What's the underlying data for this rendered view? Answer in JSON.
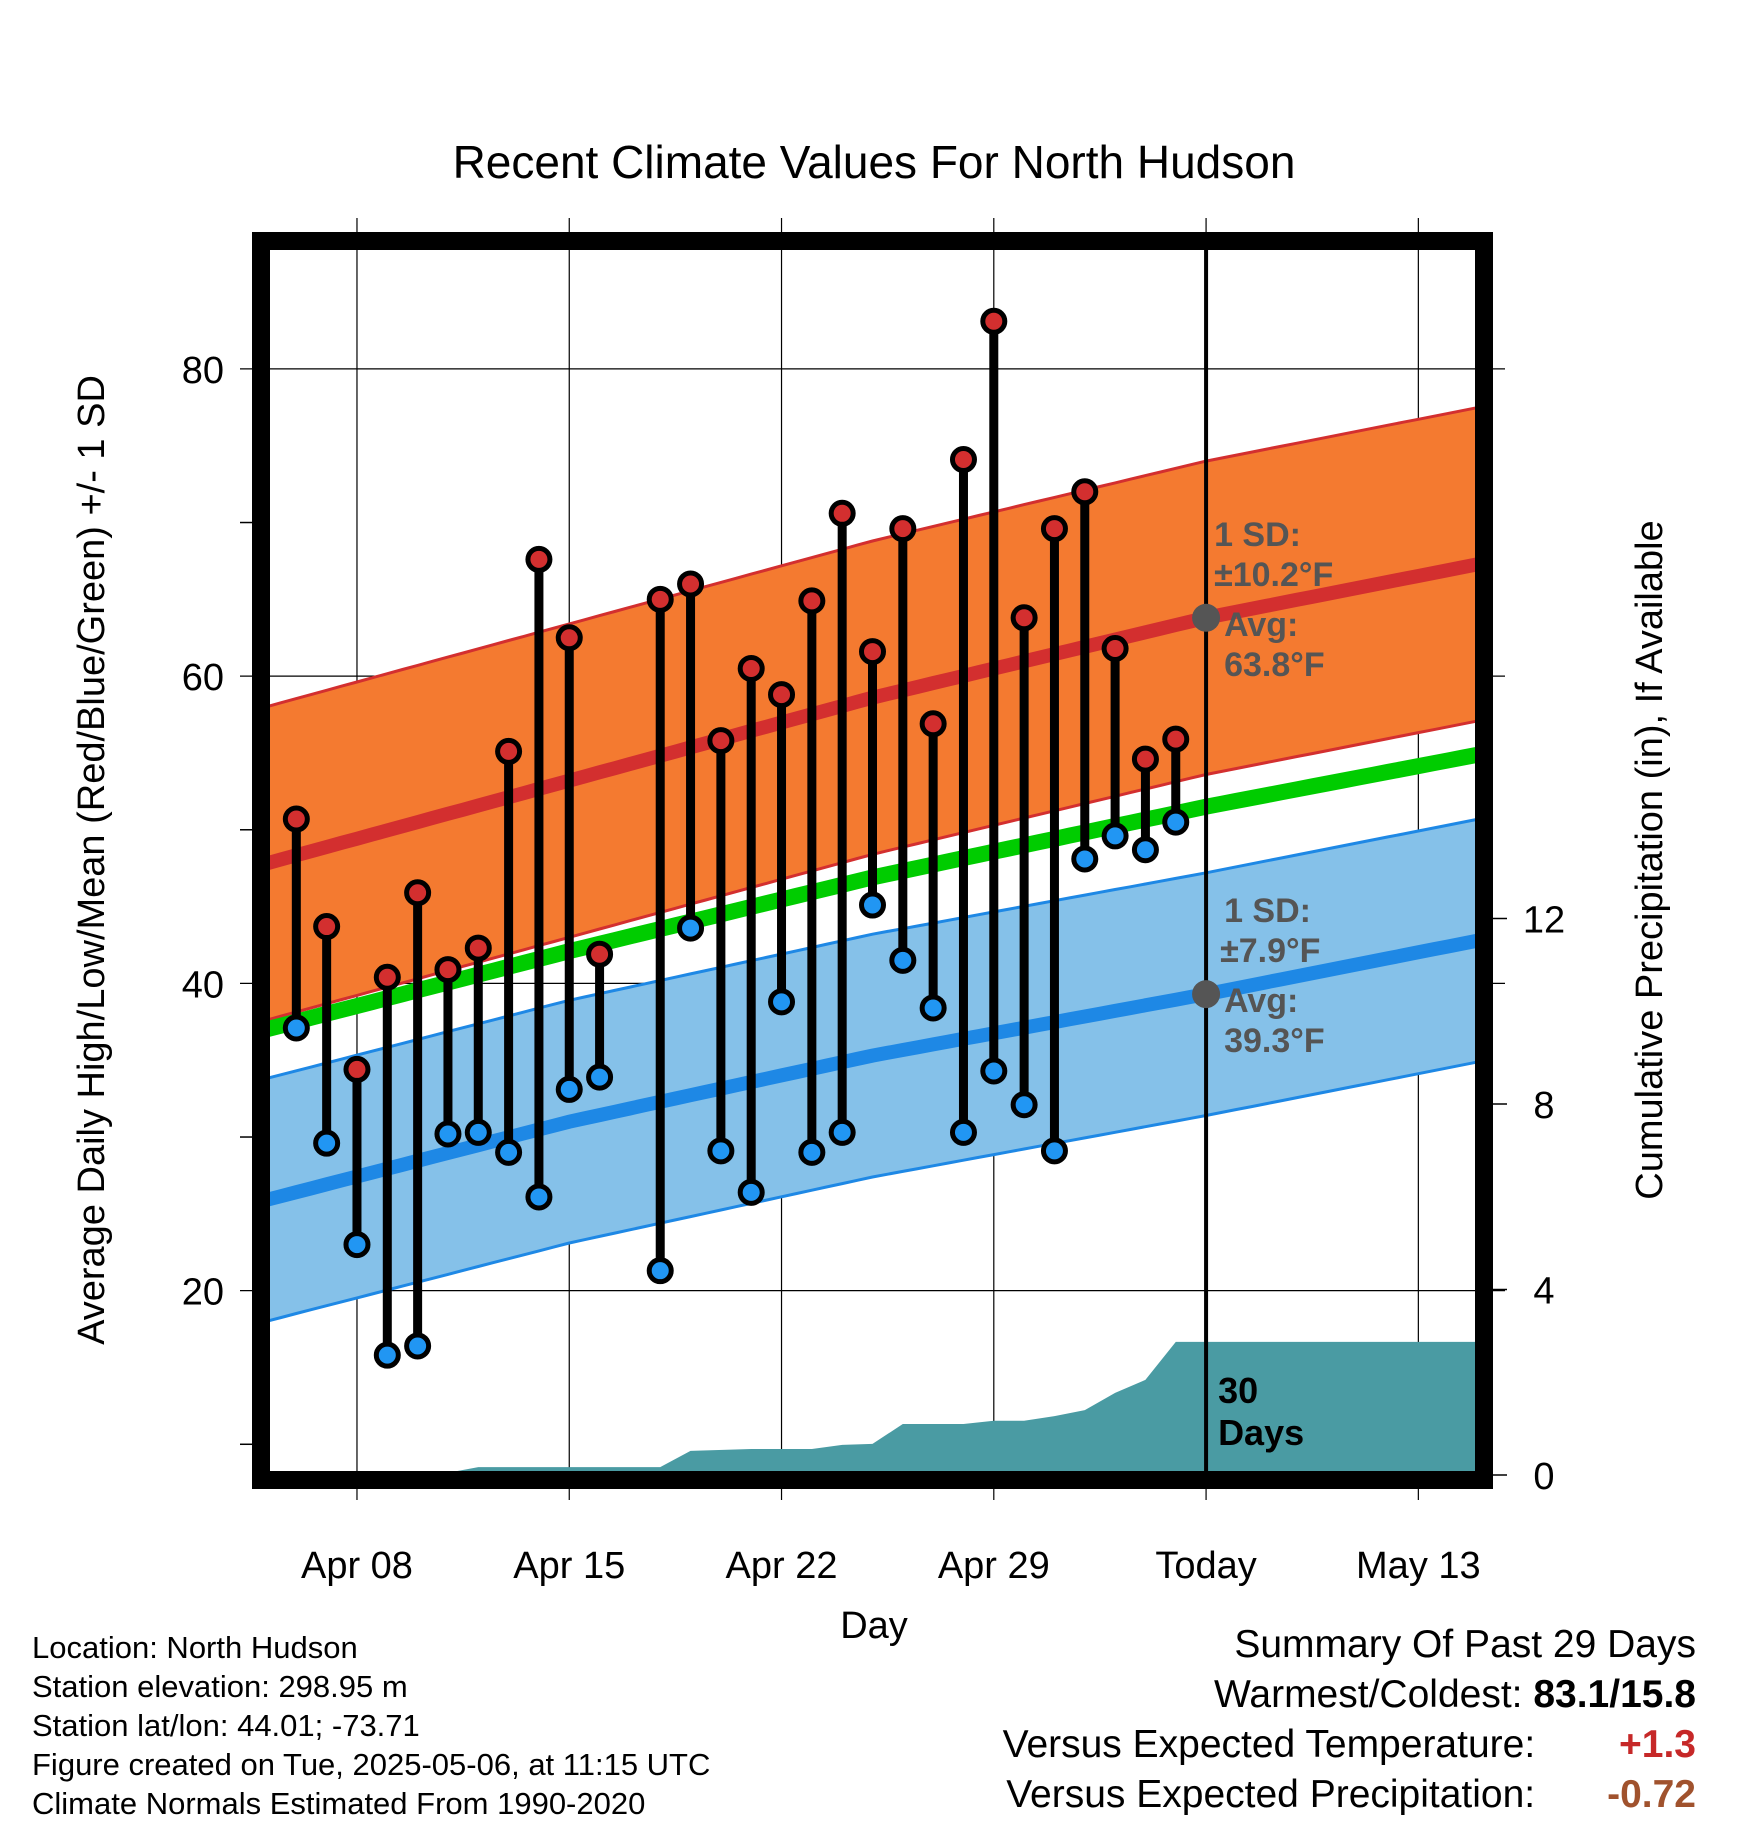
{
  "title": "Recent Climate Values For North Hudson",
  "colors": {
    "high_band": "#f47a30",
    "high_line": "#d32f2f",
    "low_band": "#85c1e9",
    "low_line": "#1e88e5",
    "mean_line": "#00cc00",
    "high_dot": "#d32f2f",
    "low_dot": "#2196f3",
    "precip_fill": "#4a9ba3",
    "annotation_text": "#555555"
  },
  "info": {
    "location": "Location: North Hudson",
    "elevation": "Station elevation: 298.95 m",
    "latlon": "Station lat/lon: 44.01; -73.71",
    "created": "Figure created on Tue, 2025-05-06, at 11:15 UTC",
    "normals": "Climate Normals Estimated From 1990-2020"
  },
  "summary": {
    "title": "Summary Of Past 29 Days",
    "warm_label": "Warmest/Coldest:",
    "warm_value": "83.1/15.8",
    "temp_label": "Versus Expected Temperature:",
    "temp_value": "+1.3",
    "precip_label": "Versus Expected Precipitation:",
    "precip_value": "-0.72"
  },
  "chart_data": {
    "type": "line",
    "xlabel": "Day",
    "ylabel": "Average Daily High/Low/Mean (Red/Blue/Green) +/- 1 SD",
    "y2label": "Cumulative Precipitation (in), If Available",
    "xlim": [
      "2025-04-05",
      "2025-05-15"
    ],
    "ylim": [
      8,
      88
    ],
    "y2lim": [
      0,
      26.5
    ],
    "y_ticks": [
      20,
      40,
      60,
      80
    ],
    "y2_ticks": [
      0,
      4,
      8,
      12
    ],
    "x_ticks": [
      {
        "date": "2025-04-08",
        "label": "Apr 08"
      },
      {
        "date": "2025-04-15",
        "label": "Apr 15"
      },
      {
        "date": "2025-04-22",
        "label": "Apr 22"
      },
      {
        "date": "2025-04-29",
        "label": "Apr 29"
      },
      {
        "date": "2025-05-06",
        "label": "Today"
      },
      {
        "date": "2025-05-13",
        "label": "May 13"
      }
    ],
    "grid": true,
    "today": "2025-05-06",
    "normal_high": {
      "x": [
        "2025-04-05",
        "2025-04-15",
        "2025-04-25",
        "2025-05-06",
        "2025-05-15"
      ],
      "mean": [
        47.8,
        53.2,
        58.6,
        63.8,
        67.3
      ],
      "sd": 10.2
    },
    "normal_low": {
      "x": [
        "2025-04-05",
        "2025-04-15",
        "2025-04-25",
        "2025-05-06",
        "2025-05-15"
      ],
      "mean": [
        25.9,
        31.0,
        35.3,
        39.3,
        42.8
      ],
      "sd": 7.9
    },
    "normal_mean": {
      "x": [
        "2025-04-05",
        "2025-04-15",
        "2025-04-25",
        "2025-05-06",
        "2025-05-15"
      ],
      "values": [
        37.0,
        42.1,
        46.9,
        51.5,
        54.9
      ]
    },
    "daily": {
      "x": [
        "2025-04-06",
        "2025-04-07",
        "2025-04-08",
        "2025-04-09",
        "2025-04-10",
        "2025-04-11",
        "2025-04-12",
        "2025-04-13",
        "2025-04-14",
        "2025-04-15",
        "2025-04-16",
        "2025-04-18",
        "2025-04-19",
        "2025-04-20",
        "2025-04-21",
        "2025-04-22",
        "2025-04-23",
        "2025-04-24",
        "2025-04-25",
        "2025-04-26",
        "2025-04-27",
        "2025-04-28",
        "2025-04-29",
        "2025-04-30",
        "2025-05-01",
        "2025-05-02",
        "2025-05-03",
        "2025-05-04",
        "2025-05-05"
      ],
      "high": [
        50.7,
        43.7,
        34.4,
        40.4,
        45.9,
        40.9,
        42.3,
        55.1,
        67.6,
        62.5,
        41.9,
        65.0,
        66.0,
        55.8,
        60.5,
        58.8,
        64.9,
        70.6,
        61.6,
        69.6,
        56.9,
        74.1,
        83.1,
        63.8,
        69.6,
        72.0,
        61.8,
        54.6,
        55.9
      ],
      "low": [
        37.1,
        29.6,
        23.0,
        15.8,
        16.4,
        30.2,
        30.3,
        29.0,
        26.1,
        33.1,
        33.9,
        21.3,
        43.6,
        29.1,
        26.4,
        38.8,
        29.0,
        30.3,
        45.1,
        41.5,
        38.4,
        30.3,
        34.3,
        32.1,
        29.1,
        48.1,
        49.6,
        48.7,
        50.5
      ]
    },
    "cum_precip": {
      "x": [
        "2025-04-05",
        "2025-04-08",
        "2025-04-09",
        "2025-04-10",
        "2025-04-11",
        "2025-04-12",
        "2025-04-18",
        "2025-04-19",
        "2025-04-21",
        "2025-04-23",
        "2025-04-24",
        "2025-04-25",
        "2025-04-26",
        "2025-04-28",
        "2025-04-29",
        "2025-04-30",
        "2025-05-01",
        "2025-05-02",
        "2025-05-03",
        "2025-05-04",
        "2025-05-05",
        "2025-05-15"
      ],
      "values": [
        0,
        0,
        0,
        0,
        0.05,
        0.17,
        0.17,
        0.52,
        0.56,
        0.56,
        0.65,
        0.67,
        1.1,
        1.1,
        1.17,
        1.17,
        1.27,
        1.4,
        1.77,
        2.05,
        2.87,
        2.87
      ]
    },
    "annotations": {
      "high_sd": "1 SD:",
      "high_sd_value": "±10.2°F",
      "high_avg": "Avg:",
      "high_avg_value": "63.8°F",
      "low_sd": "1 SD:",
      "low_sd_value": "±7.9°F",
      "low_avg": "Avg:",
      "low_avg_value": "39.3°F",
      "days_count": "30",
      "days_label": "Days"
    }
  }
}
